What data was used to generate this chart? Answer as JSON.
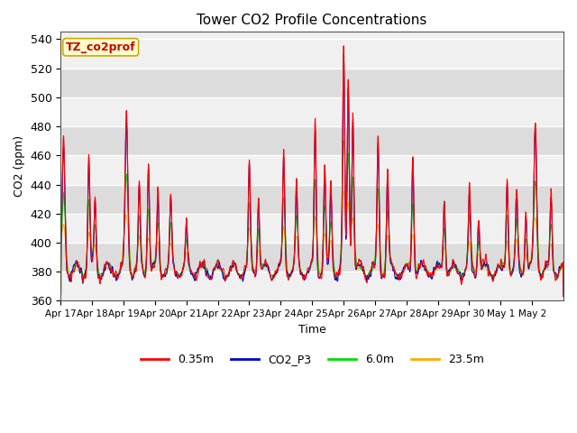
{
  "title": "Tower CO2 Profile Concentrations",
  "xlabel": "Time",
  "ylabel": "CO2 (ppm)",
  "ylim": [
    360,
    545
  ],
  "yticks": [
    360,
    380,
    400,
    420,
    440,
    460,
    480,
    500,
    520,
    540
  ],
  "fig_bg": "#ffffff",
  "plot_bg_light": "#f0f0f0",
  "plot_bg_dark": "#dcdcdc",
  "grid_color": "#ffffff",
  "annotation_text": "TZ_co2prof",
  "annotation_bg": "#ffffcc",
  "annotation_edge": "#ccaa00",
  "annotation_text_color": "#cc0000",
  "lines": [
    {
      "label": "0.35m",
      "color": "#ff0000",
      "lw": 0.8
    },
    {
      "label": "CO2_P3",
      "color": "#0000cc",
      "lw": 0.8
    },
    {
      "label": "6.0m",
      "color": "#00dd00",
      "lw": 0.8
    },
    {
      "label": "23.5m",
      "color": "#ffaa00",
      "lw": 0.8
    }
  ],
  "x_tick_labels": [
    "Apr 17",
    "Apr 18",
    "Apr 19",
    "Apr 20",
    "Apr 21",
    "Apr 22",
    "Apr 23",
    "Apr 24",
    "Apr 25",
    "Apr 26",
    "Apr 27",
    "Apr 28",
    "Apr 29",
    "Apr 30",
    "May 1",
    "May 2"
  ],
  "n_days": 16,
  "pts_per_day": 96,
  "seed": 12345
}
